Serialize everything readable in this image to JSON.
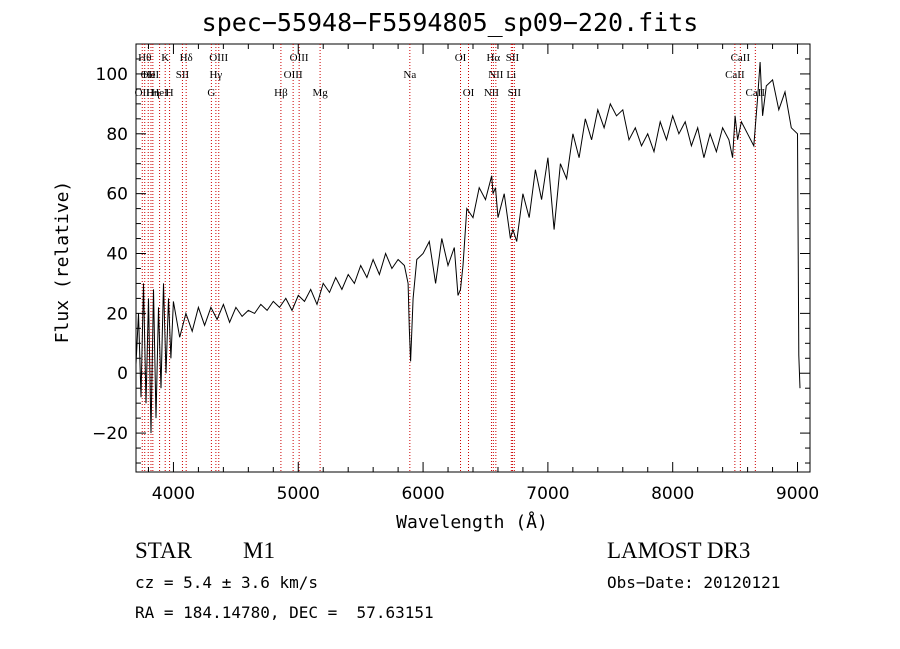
{
  "chart_data": {
    "type": "line",
    "title": "spec−55948−F5594805_sp09−220.fits",
    "xlabel": "Wavelength (Å)",
    "ylabel": "Flux (relative)",
    "xlim": [
      3700,
      9100
    ],
    "ylim": [
      -33,
      110
    ],
    "xticks": [
      4000,
      5000,
      6000,
      7000,
      8000,
      9000
    ],
    "yticks": [
      -20,
      0,
      20,
      40,
      60,
      80,
      100
    ],
    "ytick_labels": [
      "−20",
      "0",
      "20",
      "40",
      "60",
      "80",
      "100"
    ],
    "line_color": "#000000",
    "marker_color": "#cc0000",
    "series": [
      {
        "x": [
          3700,
          3720,
          3740,
          3760,
          3780,
          3800,
          3820,
          3840,
          3860,
          3880,
          3900,
          3920,
          3940,
          3960,
          3980,
          4000,
          4050,
          4100,
          4150,
          4200,
          4250,
          4300,
          4350,
          4400,
          4450,
          4500,
          4550,
          4600,
          4650,
          4700,
          4750,
          4800,
          4850,
          4900,
          4950,
          5000,
          5050,
          5100,
          5150,
          5200,
          5250,
          5300,
          5350,
          5400,
          5450,
          5500,
          5550,
          5600,
          5650,
          5700,
          5750,
          5800,
          5850,
          5880,
          5890,
          5900,
          5920,
          5950,
          6000,
          6050,
          6100,
          6150,
          6200,
          6250,
          6280,
          6300,
          6320,
          6350,
          6400,
          6450,
          6500,
          6550,
          6560,
          6580,
          6600,
          6650,
          6700,
          6720,
          6750,
          6800,
          6850,
          6900,
          6950,
          7000,
          7050,
          7100,
          7150,
          7200,
          7250,
          7300,
          7350,
          7400,
          7450,
          7500,
          7550,
          7600,
          7650,
          7700,
          7750,
          7800,
          7850,
          7900,
          7950,
          8000,
          8050,
          8100,
          8150,
          8200,
          8250,
          8300,
          8350,
          8400,
          8450,
          8480,
          8500,
          8520,
          8550,
          8600,
          8650,
          8680,
          8700,
          8720,
          8750,
          8800,
          8850,
          8900,
          8950,
          9000,
          9010,
          9020
        ],
        "y": [
          3,
          20,
          -8,
          30,
          -10,
          25,
          -20,
          28,
          -15,
          22,
          -5,
          30,
          0,
          25,
          5,
          24,
          12,
          20,
          14,
          22,
          16,
          22,
          18,
          23,
          17,
          22,
          19,
          21,
          20,
          23,
          21,
          24,
          22,
          25,
          21,
          26,
          24,
          28,
          23,
          30,
          27,
          32,
          28,
          33,
          30,
          36,
          32,
          38,
          33,
          40,
          35,
          38,
          36,
          30,
          15,
          4,
          25,
          38,
          40,
          44,
          30,
          45,
          36,
          42,
          26,
          28,
          36,
          55,
          52,
          62,
          58,
          66,
          60,
          62,
          52,
          60,
          45,
          48,
          44,
          60,
          52,
          68,
          58,
          72,
          48,
          70,
          65,
          80,
          72,
          85,
          78,
          88,
          82,
          90,
          86,
          88,
          78,
          82,
          76,
          80,
          74,
          84,
          78,
          86,
          80,
          84,
          76,
          82,
          72,
          80,
          74,
          82,
          78,
          72,
          86,
          78,
          84,
          80,
          76,
          92,
          104,
          86,
          96,
          98,
          88,
          94,
          82,
          80,
          6,
          -5
        ]
      }
    ],
    "lines": [
      {
        "wl": 3750,
        "label": "OII",
        "row": 2
      },
      {
        "wl": 3770,
        "label": "Hθ",
        "row": 0
      },
      {
        "wl": 3798,
        "label": "OII",
        "row": 1
      },
      {
        "wl": 3820,
        "label": "HeI",
        "row": 1
      },
      {
        "wl": 3835,
        "label": "Hη",
        "row": 2
      },
      {
        "wl": 3889,
        "label": "HeI",
        "row": 2
      },
      {
        "wl": 3934,
        "label": "K",
        "row": 0
      },
      {
        "wl": 3969,
        "label": "H",
        "row": 2
      },
      {
        "wl": 4072,
        "label": "SII",
        "row": 1
      },
      {
        "wl": 4102,
        "label": "Hδ",
        "row": 0
      },
      {
        "wl": 4304,
        "label": "G",
        "row": 2
      },
      {
        "wl": 4340,
        "label": "Hγ",
        "row": 1
      },
      {
        "wl": 4363,
        "label": "OIII",
        "row": 0
      },
      {
        "wl": 4861,
        "label": "Hβ",
        "row": 2
      },
      {
        "wl": 4959,
        "label": "OIII",
        "row": 1
      },
      {
        "wl": 5007,
        "label": "OIII",
        "row": 0
      },
      {
        "wl": 5175,
        "label": "Mg",
        "row": 2
      },
      {
        "wl": 5894,
        "label": "Na",
        "row": 1
      },
      {
        "wl": 6300,
        "label": "OI",
        "row": 0
      },
      {
        "wl": 6364,
        "label": "OI",
        "row": 2
      },
      {
        "wl": 6548,
        "label": "NII",
        "row": 2
      },
      {
        "wl": 6563,
        "label": "Hα",
        "row": 0
      },
      {
        "wl": 6583,
        "label": "NII",
        "row": 1
      },
      {
        "wl": 6707,
        "label": "Li",
        "row": 1
      },
      {
        "wl": 6716,
        "label": "SII",
        "row": 0
      },
      {
        "wl": 6731,
        "label": "SII",
        "row": 2
      },
      {
        "wl": 8498,
        "label": "CaII",
        "row": 1
      },
      {
        "wl": 8542,
        "label": "CaII",
        "row": 0
      },
      {
        "wl": 8662,
        "label": "CaII",
        "row": 2
      }
    ]
  },
  "info": {
    "object_class": "STAR",
    "subclass": "M1",
    "cz": "cz = 5.4 ± 3.6 km/s",
    "coords": "RA = 184.14780, DEC =  57.63151",
    "survey": "LAMOST DR3",
    "obs_date": "Obs−Date: 20120121"
  }
}
